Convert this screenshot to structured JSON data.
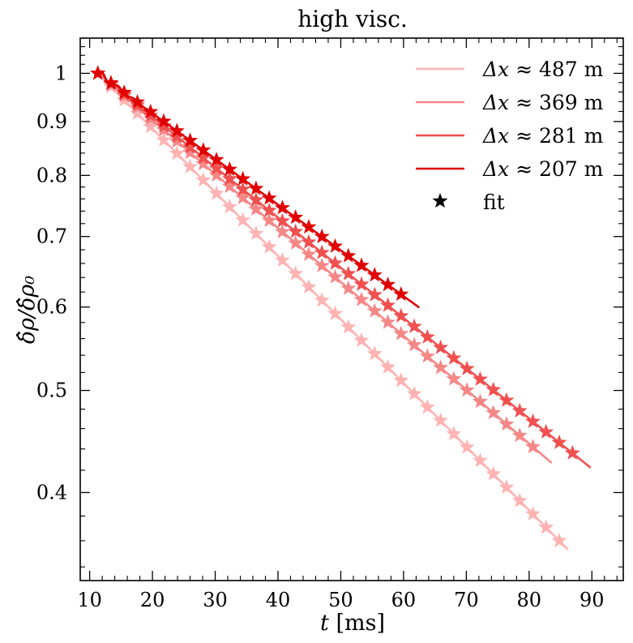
{
  "chart_data": {
    "type": "line",
    "title": "high visc.",
    "xlabel": "t [ms]",
    "ylabel": "δ̂ρ/δ̂ρ₀",
    "yscale": "log",
    "xlim": [
      8.5,
      95
    ],
    "ylim": [
      0.33,
      1.08
    ],
    "xticks": [
      10,
      20,
      30,
      40,
      50,
      60,
      70,
      80,
      90
    ],
    "xtick_labels": [
      "10",
      "20",
      "30",
      "40",
      "50",
      "60",
      "70",
      "80",
      "90"
    ],
    "yticks": [
      0.4,
      0.5,
      0.6,
      0.7,
      0.8,
      0.9,
      1.0
    ],
    "ytick_labels": [
      "0.4",
      "0.5",
      "0.6",
      "0.7",
      "0.8",
      "0.9",
      "1"
    ],
    "legend_position": "top-right",
    "legend_fit_label": "fit",
    "series": [
      {
        "name": "Δx ≈ 487 m",
        "prefix": "Δx ≈ ",
        "value": "487",
        "unit": "m",
        "color": "#ffb3b3",
        "t_end": 86.2,
        "fit_end": 85.0,
        "decay_per_ms": 0.0139,
        "oscillation": 0.0
      },
      {
        "name": "Δx ≈ 369 m",
        "prefix": "Δx ≈ ",
        "value": "369",
        "unit": "m",
        "color": "#f58787",
        "t_end": 83.6,
        "fit_end": 82.2,
        "decay_per_ms": 0.01178,
        "oscillation": 0.006
      },
      {
        "name": "Δx ≈ 281 m",
        "prefix": "Δx ≈ ",
        "value": "281",
        "unit": "m",
        "color": "#f05050",
        "t_end": 89.8,
        "fit_end": 88.4,
        "decay_per_ms": 0.01098,
        "oscillation": 0.01
      },
      {
        "name": "Δx ≈ 207 m",
        "prefix": "Δx ≈ ",
        "value": "207",
        "unit": "m",
        "color": "#e00000",
        "t_end": 62.5,
        "fit_end": 61.3,
        "decay_per_ms": 0.01,
        "oscillation": 0.012
      }
    ],
    "t_start": 11.3,
    "marker_spacing_ms": 2.1,
    "fit_marker_color": "#000000"
  }
}
